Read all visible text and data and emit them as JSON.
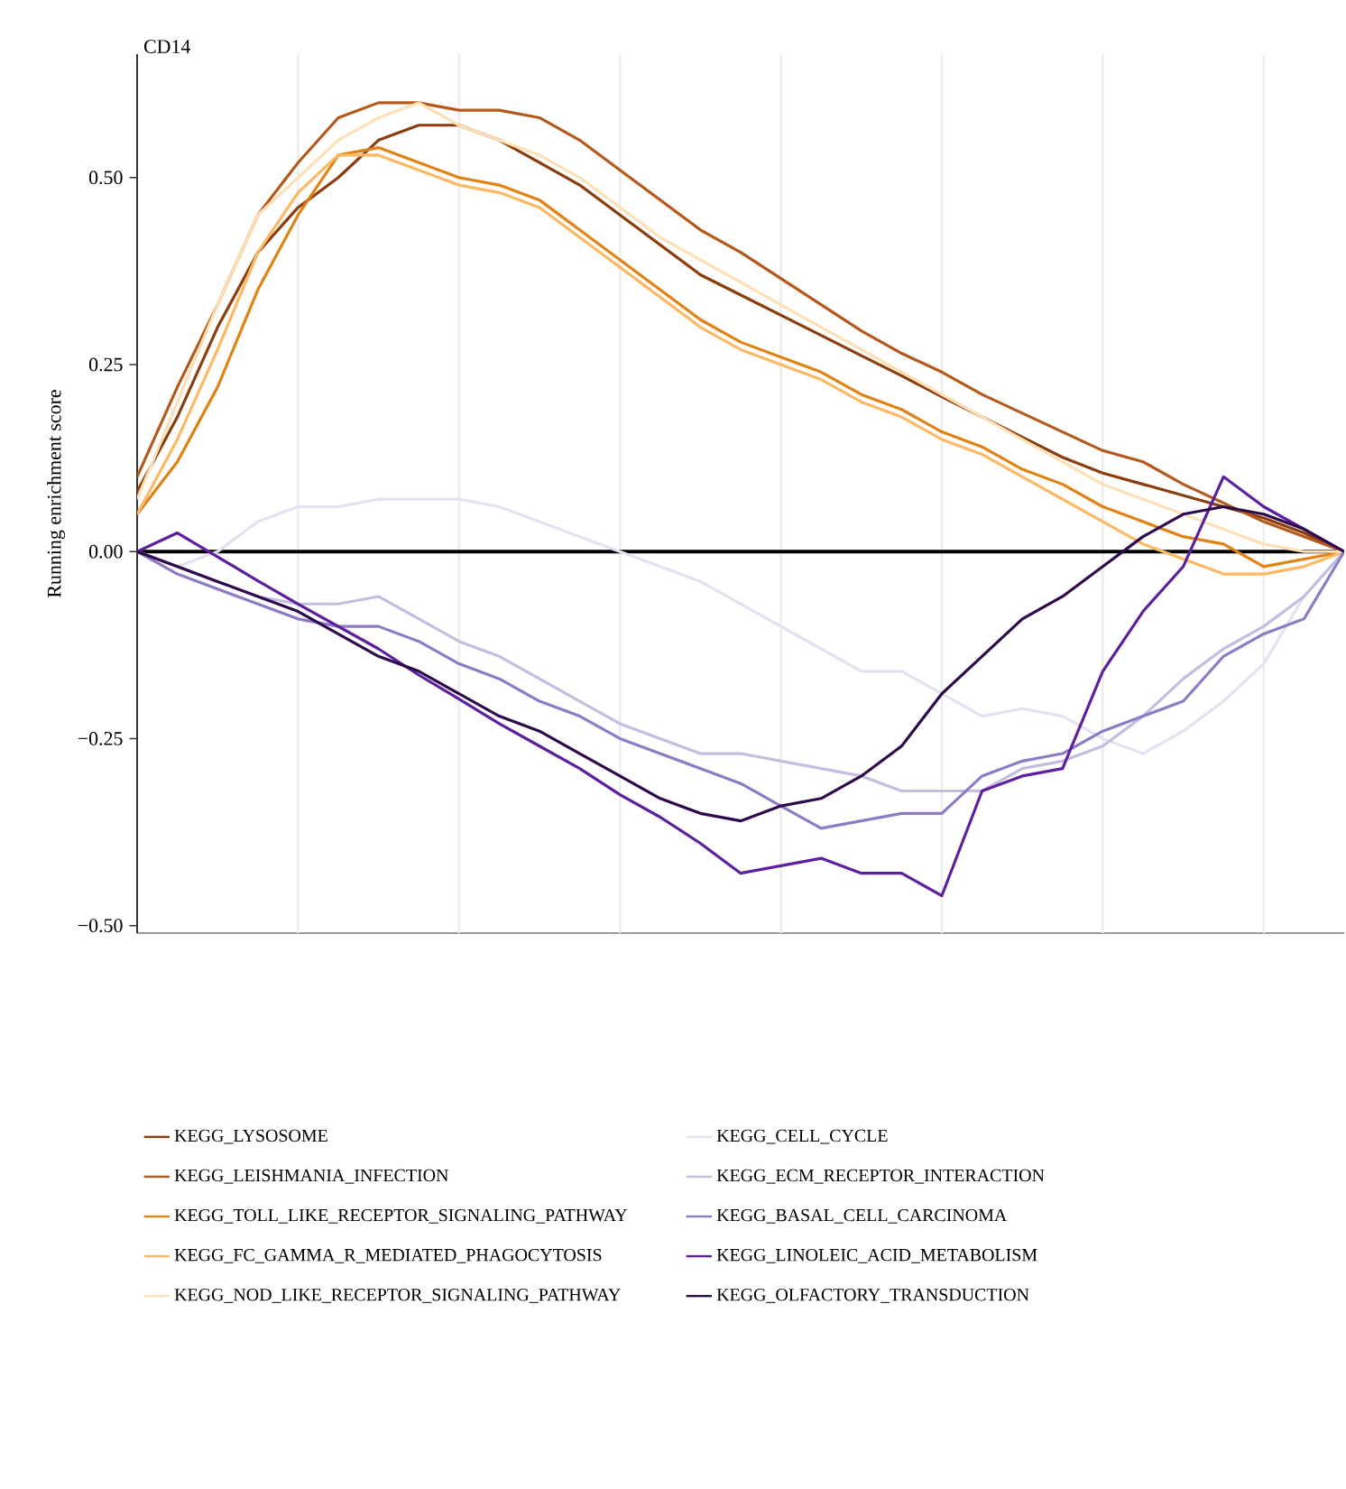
{
  "chart_data": {
    "type": "line",
    "title": "CD14",
    "ylabel": "Running enrichment score",
    "categories": [
      null,
      null,
      null,
      null,
      null,
      null,
      null,
      null,
      null,
      null,
      null,
      null,
      null,
      null,
      null,
      null,
      null,
      null,
      null,
      null,
      null,
      null,
      null,
      null,
      null,
      null,
      null,
      null,
      null,
      null,
      null
    ],
    "ylim": [
      -0.51,
      0.665
    ],
    "yticks": [
      {
        "value": -0.5,
        "label": "−0.50"
      },
      {
        "value": -0.25,
        "label": "−0.25"
      },
      {
        "value": 0,
        "label": "0.00"
      },
      {
        "value": 0.25,
        "label": "0.25"
      },
      {
        "value": 0.5,
        "label": "0.50"
      }
    ],
    "grid": "x",
    "legend": "bottom",
    "ref_lines": [
      {
        "axis": "y",
        "value": 0,
        "color": "#000000"
      }
    ],
    "series": [
      {
        "name": "KEGG_LYSOSOME",
        "color": "#8c3d0d",
        "values": [
          0.08,
          0.18,
          0.3,
          0.4,
          0.46,
          0.5,
          0.55,
          0.57,
          0.57,
          0.55,
          0.52,
          0.49,
          0.45,
          0.41,
          0.37,
          0.343,
          0.316,
          0.289,
          0.262,
          0.235,
          0.207,
          0.18,
          0.153,
          0.126,
          0.105,
          0.09,
          0.075,
          0.06,
          0.045,
          0.025,
          0.0
        ]
      },
      {
        "name": "KEGG_LEISHMANIA_INFECTION",
        "color": "#b5581b",
        "values": [
          0.1,
          0.22,
          0.33,
          0.45,
          0.52,
          0.58,
          0.6,
          0.6,
          0.59,
          0.59,
          0.58,
          0.55,
          0.51,
          0.47,
          0.43,
          0.4,
          0.365,
          0.33,
          0.295,
          0.265,
          0.24,
          0.21,
          0.185,
          0.16,
          0.135,
          0.12,
          0.09,
          0.065,
          0.04,
          0.02,
          0.0
        ]
      },
      {
        "name": "KEGG_TOLL_LIKE_RECEPTOR_SIGNALING_PATHWAY",
        "color": "#e08214",
        "values": [
          0.05,
          0.12,
          0.22,
          0.35,
          0.45,
          0.53,
          0.54,
          0.52,
          0.5,
          0.49,
          0.47,
          0.43,
          0.39,
          0.35,
          0.31,
          0.28,
          0.26,
          0.24,
          0.21,
          0.19,
          0.16,
          0.14,
          0.11,
          0.09,
          0.06,
          0.04,
          0.02,
          0.01,
          -0.02,
          -0.01,
          0.0
        ]
      },
      {
        "name": "KEGG_FC_GAMMA_R_MEDIATED_PHAGOCYTOSIS",
        "color": "#fdb863",
        "values": [
          0.05,
          0.15,
          0.27,
          0.4,
          0.48,
          0.53,
          0.53,
          0.51,
          0.49,
          0.48,
          0.46,
          0.42,
          0.38,
          0.34,
          0.3,
          0.27,
          0.25,
          0.23,
          0.2,
          0.18,
          0.15,
          0.13,
          0.1,
          0.07,
          0.04,
          0.01,
          -0.01,
          -0.03,
          -0.03,
          -0.02,
          0.0
        ]
      },
      {
        "name": "KEGG_NOD_LIKE_RECEPTOR_SIGNALING_PATHWAY",
        "color": "#fee0b6",
        "values": [
          0.07,
          0.2,
          0.33,
          0.45,
          0.5,
          0.55,
          0.58,
          0.6,
          0.57,
          0.55,
          0.53,
          0.5,
          0.46,
          0.42,
          0.39,
          0.36,
          0.33,
          0.3,
          0.27,
          0.24,
          0.21,
          0.18,
          0.15,
          0.12,
          0.09,
          0.07,
          0.05,
          0.03,
          0.01,
          0.0,
          0.0
        ]
      },
      {
        "name": "KEGG_CELL_CYCLE",
        "color": "#e4e1f2",
        "values": [
          0.0,
          -0.02,
          0.0,
          0.04,
          0.06,
          0.06,
          0.07,
          0.07,
          0.07,
          0.06,
          0.04,
          0.02,
          0.0,
          -0.02,
          -0.04,
          -0.07,
          -0.1,
          -0.13,
          -0.16,
          -0.16,
          -0.19,
          -0.22,
          -0.21,
          -0.22,
          -0.25,
          -0.27,
          -0.24,
          -0.2,
          -0.15,
          -0.06,
          0.0
        ]
      },
      {
        "name": "KEGG_ECM_RECEPTOR_INTERACTION",
        "color": "#c4bde0",
        "values": [
          0.0,
          -0.02,
          -0.04,
          -0.06,
          -0.07,
          -0.07,
          -0.06,
          -0.09,
          -0.12,
          -0.14,
          -0.17,
          -0.2,
          -0.23,
          -0.25,
          -0.27,
          -0.27,
          -0.28,
          -0.29,
          -0.3,
          -0.32,
          -0.32,
          -0.32,
          -0.29,
          -0.28,
          -0.26,
          -0.22,
          -0.17,
          -0.13,
          -0.1,
          -0.06,
          0.0
        ]
      },
      {
        "name": "KEGG_BASAL_CELL_CARCINOMA",
        "color": "#8d7cc4",
        "values": [
          0.0,
          -0.03,
          -0.05,
          -0.07,
          -0.09,
          -0.1,
          -0.1,
          -0.12,
          -0.15,
          -0.17,
          -0.2,
          -0.22,
          -0.25,
          -0.27,
          -0.29,
          -0.31,
          -0.34,
          -0.37,
          -0.36,
          -0.35,
          -0.35,
          -0.3,
          -0.28,
          -0.27,
          -0.24,
          -0.22,
          -0.2,
          -0.14,
          -0.11,
          -0.09,
          0.0
        ]
      },
      {
        "name": "KEGG_LINOLEIC_ACID_METABOLISM",
        "color": "#5c1f9e",
        "values": [
          0.0,
          0.025,
          -0.007,
          -0.039,
          -0.07,
          -0.1,
          -0.13,
          -0.165,
          -0.197,
          -0.23,
          -0.26,
          -0.29,
          -0.325,
          -0.355,
          -0.39,
          -0.43,
          -0.42,
          -0.41,
          -0.43,
          -0.43,
          -0.46,
          -0.32,
          -0.3,
          -0.29,
          -0.16,
          -0.08,
          -0.02,
          0.1,
          0.06,
          0.03,
          0.0
        ]
      },
      {
        "name": "KEGG_OLFACTORY_TRANSDUCTION",
        "color": "#2d0a4b",
        "values": [
          0.0,
          -0.02,
          -0.04,
          -0.06,
          -0.08,
          -0.11,
          -0.14,
          -0.16,
          -0.19,
          -0.22,
          -0.24,
          -0.27,
          -0.3,
          -0.33,
          -0.35,
          -0.36,
          -0.34,
          -0.33,
          -0.3,
          -0.26,
          -0.19,
          -0.14,
          -0.09,
          -0.06,
          -0.02,
          0.02,
          0.05,
          0.06,
          0.05,
          0.03,
          0.0
        ]
      }
    ]
  }
}
